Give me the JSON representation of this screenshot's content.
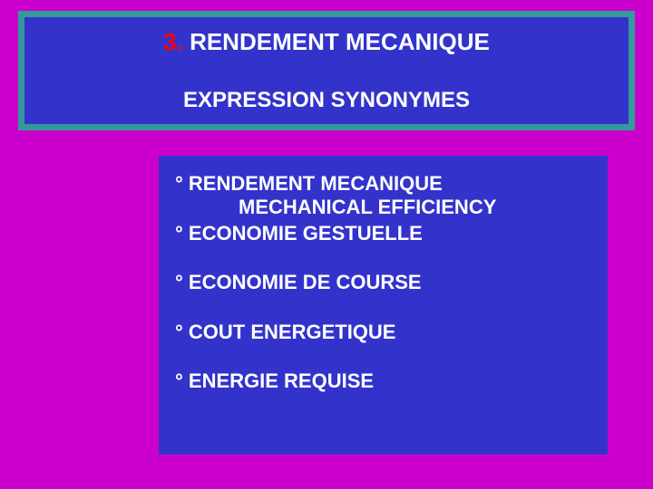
{
  "colors": {
    "page_bg": "#cc00cc",
    "box_bg": "#3333cc",
    "title_border": "#339999",
    "text": "#ffffff",
    "accent_number": "#ff0000"
  },
  "typography": {
    "font_family": "Arial",
    "title_fontsize_pt": 20,
    "subtitle_fontsize_pt": 18,
    "item_fontsize_pt": 17,
    "weight": "bold"
  },
  "title": {
    "number": "3.",
    "text": "RENDEMENT MECANIQUE",
    "subtitle": "EXPRESSION SYNONYMES"
  },
  "items": [
    {
      "label": "° RENDEMENT MECANIQUE",
      "sublabel": "MECHANICAL EFFICIENCY"
    },
    {
      "label": "° ECONOMIE GESTUELLE"
    },
    {
      "label": "° ECONOMIE DE COURSE"
    },
    {
      "label": "° COUT ENERGETIQUE"
    },
    {
      "label": "° ENERGIE REQUISE"
    }
  ]
}
